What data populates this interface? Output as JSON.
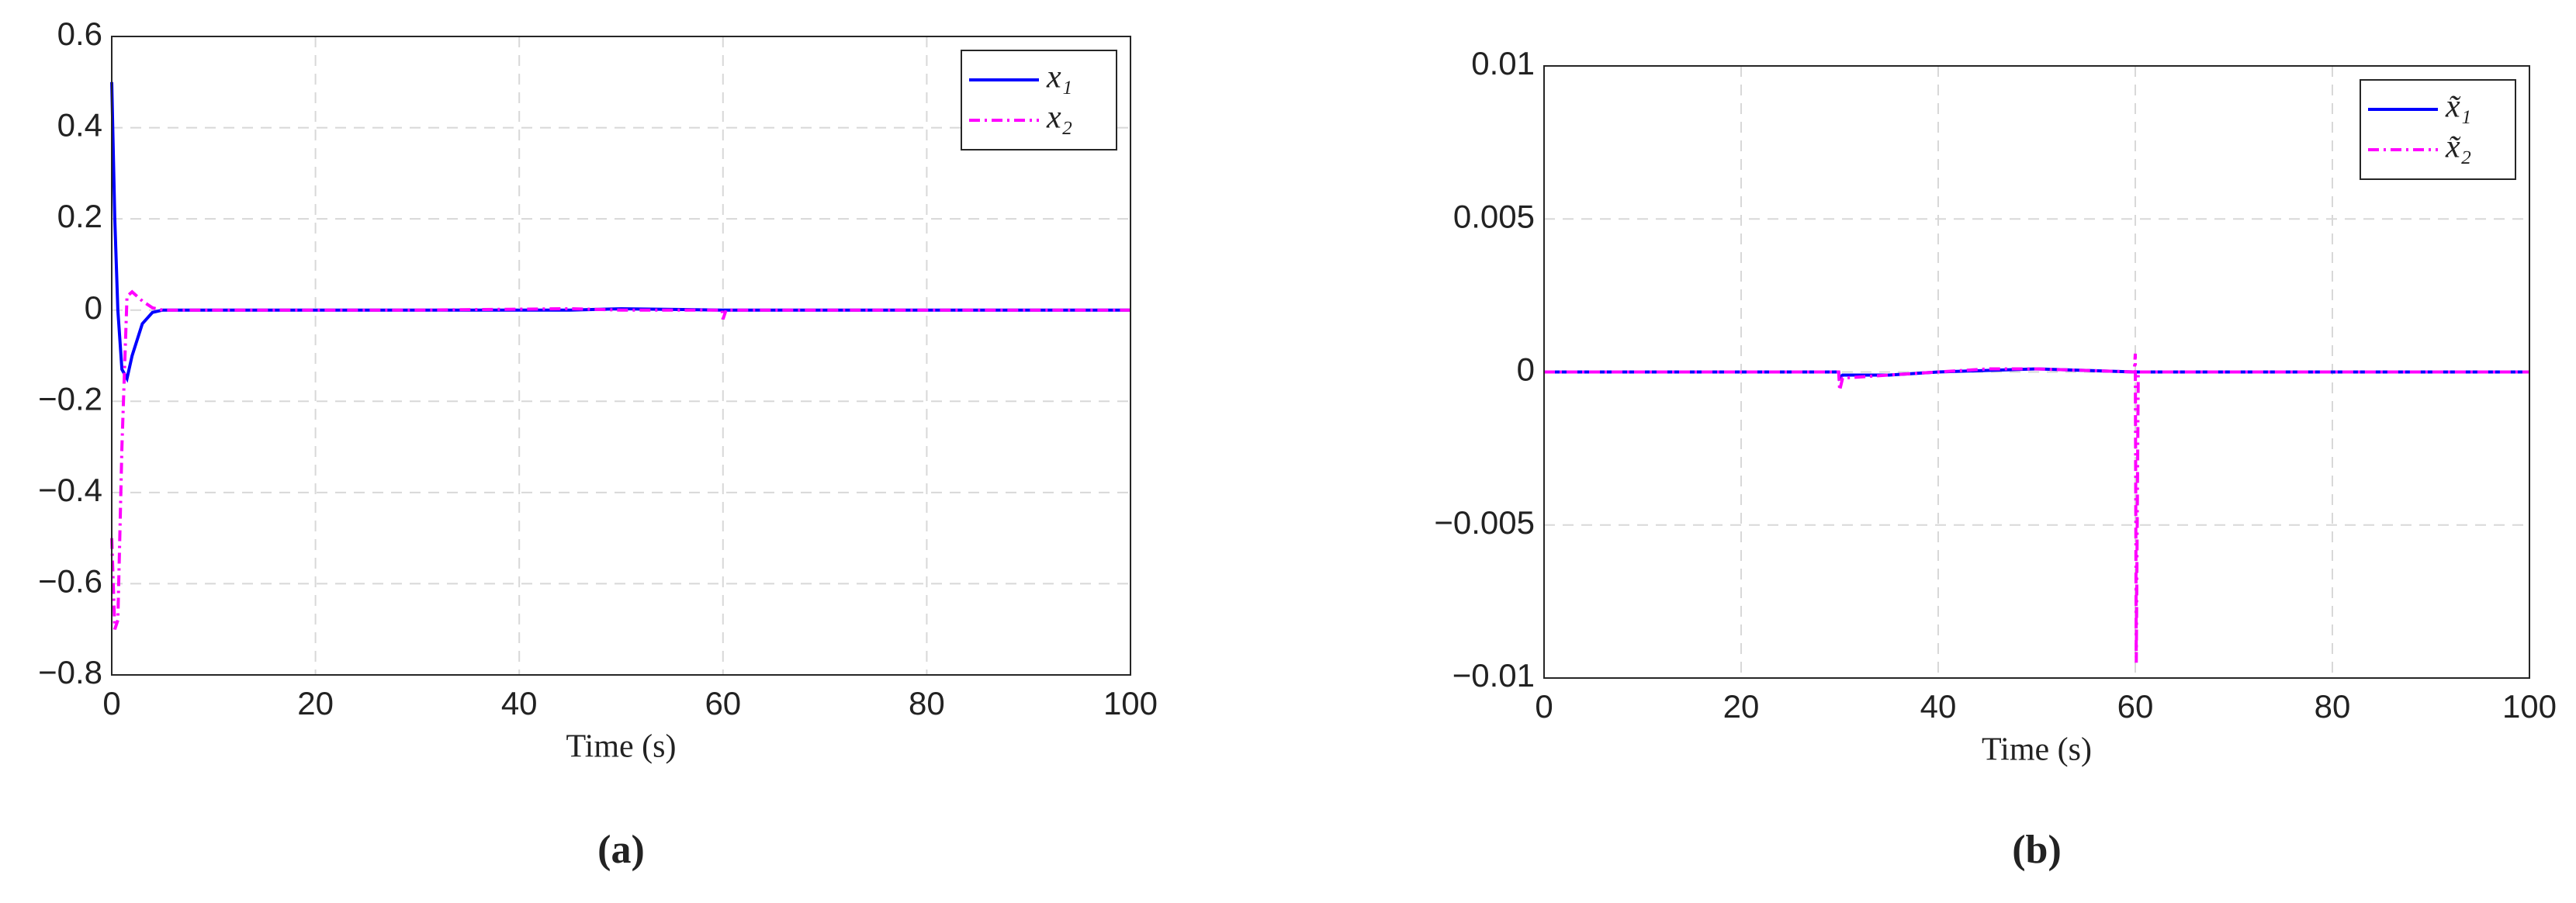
{
  "chart_data": [
    {
      "type": "line",
      "caption": "(a)",
      "xlabel": "Time (s)",
      "x": [
        0,
        0.3,
        0.6,
        1,
        1.5,
        2,
        3,
        4,
        5,
        10,
        30,
        45,
        50,
        59.9,
        60,
        60.3,
        70,
        100
      ],
      "series": [
        {
          "name": "x₁",
          "color": "#0000ff",
          "style": "solid",
          "values": [
            0.5,
            0.2,
            0,
            -0.13,
            -0.15,
            -0.1,
            -0.03,
            -0.005,
            0,
            0,
            0,
            0,
            0.003,
            0,
            0,
            0,
            0,
            0
          ]
        },
        {
          "name": "x₂",
          "color": "#ff00ff",
          "style": "dashdot",
          "values": [
            -0.5,
            -0.7,
            -0.68,
            -0.3,
            0.03,
            0.04,
            0.02,
            0.005,
            0,
            0,
            0,
            0.003,
            0,
            0,
            -0.02,
            0,
            0,
            0
          ]
        }
      ],
      "xlim": [
        0,
        100
      ],
      "xticks": [
        0,
        20,
        40,
        60,
        80,
        100
      ],
      "ylim": [
        -0.8,
        0.6
      ],
      "yticks": [
        {
          "value": -0.8,
          "label": "−0.8"
        },
        {
          "value": -0.6,
          "label": "−0.6"
        },
        {
          "value": -0.4,
          "label": "−0.4"
        },
        {
          "value": -0.2,
          "label": "−0.2"
        },
        0,
        0.2,
        0.4,
        0.6
      ],
      "grid": true,
      "legend": "top-right"
    },
    {
      "type": "line",
      "caption": "(b)",
      "xlabel": "Time (s)",
      "x": [
        0,
        29.9,
        30,
        30.3,
        35,
        40,
        45,
        50,
        55,
        59.9,
        60,
        60.1,
        60.3,
        100
      ],
      "series": [
        {
          "name": "x̃₁",
          "color": "#0000ff",
          "style": "solid",
          "values": [
            0,
            0,
            -0.0002,
            -0.0001,
            -0.0001,
            0,
            5e-05,
            0.0001,
            5e-05,
            0,
            0,
            0,
            0,
            0
          ]
        },
        {
          "name": "x̃₂",
          "color": "#ff00ff",
          "style": "dashdot",
          "values": [
            0,
            0,
            -0.0006,
            -0.0002,
            -0.0001,
            0,
            0.0001,
            0.0001,
            5e-05,
            0,
            0.0006,
            -0.0095,
            0,
            0
          ]
        }
      ],
      "xlim": [
        0,
        100
      ],
      "xticks": [
        0,
        20,
        40,
        60,
        80,
        100
      ],
      "ylim": [
        -0.01,
        0.01
      ],
      "yticks": [
        {
          "value": -0.01,
          "label": "−0.01"
        },
        {
          "value": -0.005,
          "label": "−0.005"
        },
        0,
        0.005,
        0.01
      ],
      "grid": true,
      "legend": "top-right"
    }
  ]
}
